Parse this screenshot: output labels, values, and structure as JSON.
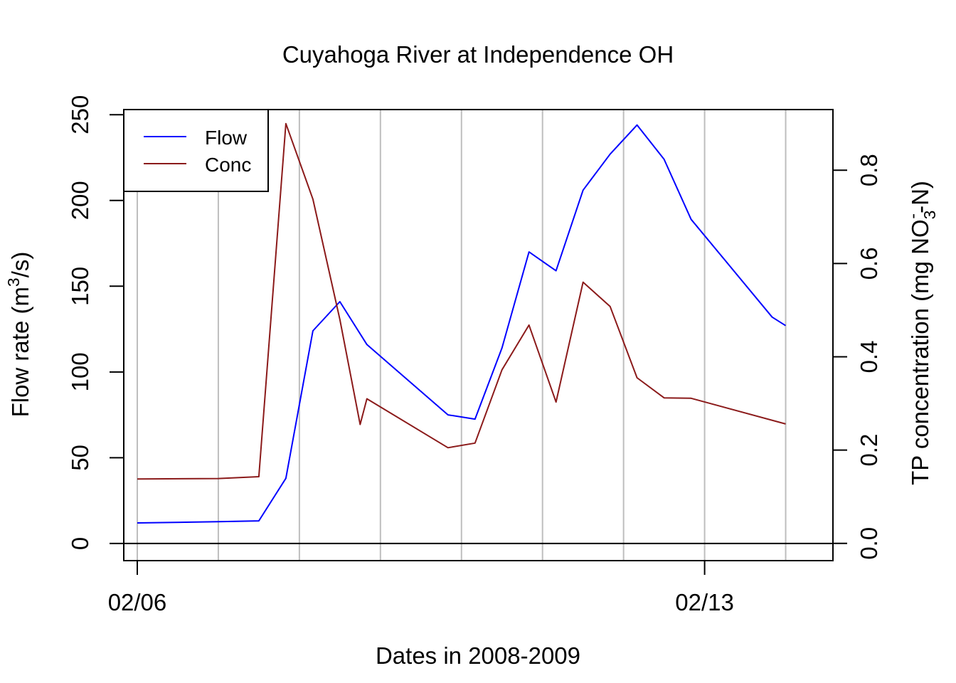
{
  "chart_data": {
    "type": "line",
    "title": "Cuyahoga River at Independence OH",
    "xlabel": "Dates in 2008-2009",
    "ylabel_left": "Flow rate (m³/s)",
    "ylabel_right": "TP concentration (mg NO₃⁻-N)",
    "x_ticks": [
      {
        "x": "2009-02-06 00:00",
        "label": "02/06"
      },
      {
        "x": "2009-02-13 00:00",
        "label": "02/13"
      }
    ],
    "xlim": [
      "2009-02-05 20:00",
      "2009-02-14 14:00"
    ],
    "ylim_left": [
      -10,
      253
    ],
    "yticks_left": [
      "0",
      "50",
      "100",
      "150",
      "200",
      "250"
    ],
    "ylim_right": [
      -0.037,
      0.93
    ],
    "yticks_right": [
      "0.0",
      "0.2",
      "0.4",
      "0.6",
      "0.8"
    ],
    "grid": "vertical",
    "grid_x": [
      "2009-02-06 00:00",
      "2009-02-07 00:00",
      "2009-02-08 00:00",
      "2009-02-09 00:00",
      "2009-02-10 00:00",
      "2009-02-11 00:00",
      "2009-02-12 00:00",
      "2009-02-13 00:00",
      "2009-02-14 00:00"
    ],
    "legend": "top-left",
    "series": [
      {
        "name": "Flow",
        "axis": "left",
        "color": "#0000ff",
        "points": [
          {
            "x": "2009-02-06 00:00",
            "y": 12
          },
          {
            "x": "2009-02-07 00:00",
            "y": 12.7
          },
          {
            "x": "2009-02-07 12:00",
            "y": 13.2
          },
          {
            "x": "2009-02-07 20:00",
            "y": 38
          },
          {
            "x": "2009-02-08 04:00",
            "y": 124
          },
          {
            "x": "2009-02-08 12:00",
            "y": 141
          },
          {
            "x": "2009-02-08 20:00",
            "y": 116
          },
          {
            "x": "2009-02-09 20:00",
            "y": 75
          },
          {
            "x": "2009-02-10 04:00",
            "y": 72.5
          },
          {
            "x": "2009-02-10 12:00",
            "y": 114
          },
          {
            "x": "2009-02-10 20:00",
            "y": 170
          },
          {
            "x": "2009-02-11 04:00",
            "y": 159
          },
          {
            "x": "2009-02-11 12:00",
            "y": 206
          },
          {
            "x": "2009-02-11 20:00",
            "y": 227
          },
          {
            "x": "2009-02-12 04:00",
            "y": 244
          },
          {
            "x": "2009-02-12 12:00",
            "y": 224
          },
          {
            "x": "2009-02-12 20:00",
            "y": 189
          },
          {
            "x": "2009-02-13 20:00",
            "y": 132
          },
          {
            "x": "2009-02-14 00:00",
            "y": 127
          }
        ]
      },
      {
        "name": "Conc",
        "axis": "right",
        "color": "#8b1a1a",
        "points": [
          {
            "x": "2009-02-06 00:00",
            "y": 0.138
          },
          {
            "x": "2009-02-07 00:00",
            "y": 0.139
          },
          {
            "x": "2009-02-07 12:00",
            "y": 0.143
          },
          {
            "x": "2009-02-07 20:00",
            "y": 0.9
          },
          {
            "x": "2009-02-08 04:00",
            "y": 0.738
          },
          {
            "x": "2009-02-08 12:00",
            "y": 0.48
          },
          {
            "x": "2009-02-08 18:00",
            "y": 0.255
          },
          {
            "x": "2009-02-08 20:00",
            "y": 0.31
          },
          {
            "x": "2009-02-09 20:00",
            "y": 0.205
          },
          {
            "x": "2009-02-10 04:00",
            "y": 0.215
          },
          {
            "x": "2009-02-10 12:00",
            "y": 0.372
          },
          {
            "x": "2009-02-10 20:00",
            "y": 0.468
          },
          {
            "x": "2009-02-11 04:00",
            "y": 0.303
          },
          {
            "x": "2009-02-11 12:00",
            "y": 0.56
          },
          {
            "x": "2009-02-11 20:00",
            "y": 0.508
          },
          {
            "x": "2009-02-12 04:00",
            "y": 0.355
          },
          {
            "x": "2009-02-12 12:00",
            "y": 0.312
          },
          {
            "x": "2009-02-12 20:00",
            "y": 0.311
          },
          {
            "x": "2009-02-14 00:00",
            "y": 0.256
          }
        ]
      }
    ]
  }
}
